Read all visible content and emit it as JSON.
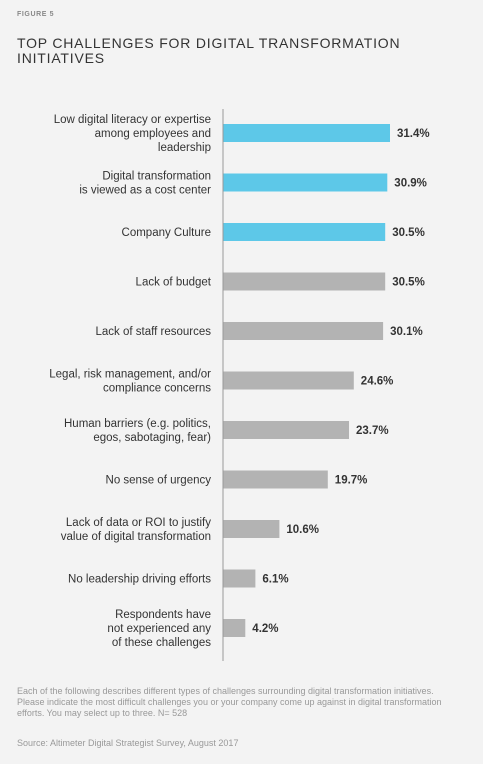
{
  "figure_label": "FIGURE 5",
  "title": "TOP CHALLENGES FOR DIGITAL TRANSFORMATION INITIATIVES",
  "note": "Each of the following describes different types of challenges surrounding digital transformation initiatives. Please indicate the most difficult challenges you or your company come up against in digital transformation efforts. You may select up to three. N= 528",
  "source": "Source: Altimeter Digital Strategist Survey, August 2017",
  "colors": {
    "highlight": "#5dc8e8",
    "default": "#b3b3b3",
    "axis": "#999999"
  },
  "chart_data": {
    "type": "bar",
    "orientation": "horizontal",
    "title": "TOP CHALLENGES FOR DIGITAL TRANSFORMATION INITIATIVES",
    "categories": [
      [
        "Low digital literacy or expertise",
        "among employees and",
        "leadership"
      ],
      [
        "Digital transformation",
        "is viewed as a cost center"
      ],
      [
        "Company Culture"
      ],
      [
        "Lack of budget"
      ],
      [
        "Lack of staff resources"
      ],
      [
        "Legal, risk management, and/or",
        "compliance concerns"
      ],
      [
        "Human barriers (e.g. politics,",
        "egos, sabotaging, fear)"
      ],
      [
        "No sense of urgency"
      ],
      [
        "Lack of data or ROI to justify",
        "value of digital transformation"
      ],
      [
        "No leadership driving efforts"
      ],
      [
        "Respondents have",
        "not experienced any",
        "of these challenges"
      ]
    ],
    "values": [
      31.4,
      30.9,
      30.5,
      30.5,
      30.1,
      24.6,
      23.7,
      19.7,
      10.6,
      6.1,
      4.2
    ],
    "value_labels": [
      "31.4%",
      "30.9%",
      "30.5%",
      "30.5%",
      "30.1%",
      "24.6%",
      "23.7%",
      "19.7%",
      "10.6%",
      "6.1%",
      "4.2%"
    ],
    "highlighted": [
      true,
      true,
      true,
      false,
      false,
      false,
      false,
      false,
      false,
      false,
      false
    ],
    "xlim": [
      0,
      32.5
    ],
    "grid": false,
    "legend": "none",
    "xlabel": "",
    "ylabel": ""
  }
}
